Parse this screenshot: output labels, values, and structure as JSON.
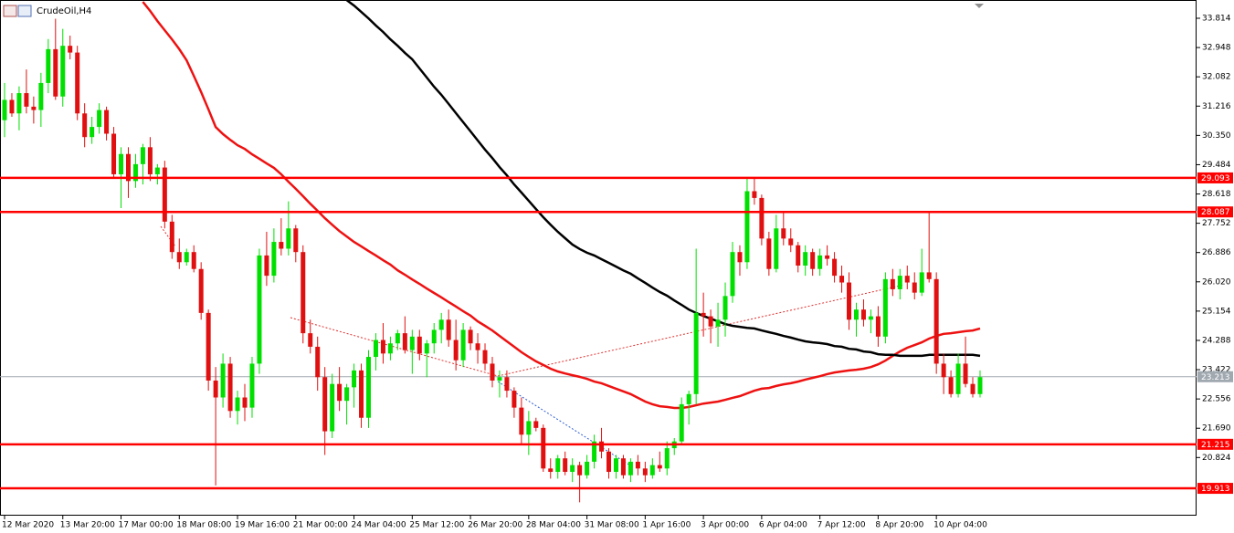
{
  "chart_data": {
    "type": "candlestick",
    "title": "CrudeOil,H4",
    "categories": [
      "12 Mar 2020",
      null,
      null,
      null,
      null,
      null,
      null,
      null,
      "13 Mar 20:00",
      null,
      null,
      null,
      null,
      null,
      null,
      null,
      "17 Mar 00:00",
      null,
      null,
      null,
      null,
      null,
      null,
      null,
      "18 Mar 08:00",
      null,
      null,
      null,
      null,
      null,
      null,
      null,
      "19 Mar 16:00",
      null,
      null,
      null,
      null,
      null,
      null,
      null,
      "21 Mar 00:00",
      null,
      null,
      null,
      null,
      null,
      null,
      null,
      "24 Mar 04:00",
      null,
      null,
      null,
      null,
      null,
      null,
      null,
      "25 Mar 12:00",
      null,
      null,
      null,
      null,
      null,
      null,
      null,
      "26 Mar 20:00",
      null,
      null,
      null,
      null,
      null,
      null,
      null,
      "28 Mar 04:00",
      null,
      null,
      null,
      null,
      null,
      null,
      null,
      "31 Mar 08:00",
      null,
      null,
      null,
      null,
      null,
      null,
      null,
      "1 Apr 16:00",
      null,
      null,
      null,
      null,
      null,
      null,
      null,
      "3 Apr 00:00",
      null,
      null,
      null,
      null,
      null,
      null,
      null,
      "6 Apr 04:00",
      null,
      null,
      null,
      null,
      null,
      null,
      null,
      "7 Apr 12:00",
      null,
      null,
      null,
      null,
      null,
      null,
      null,
      "8 Apr 20:00",
      null,
      null,
      null,
      null,
      null,
      null,
      null,
      "10 Apr 04:00",
      null,
      null,
      null,
      null,
      null,
      null
    ],
    "ohlc": [
      [
        30.8,
        31.9,
        30.3,
        31.4
      ],
      [
        31.4,
        31.6,
        30.9,
        31.0
      ],
      [
        31.0,
        31.8,
        30.5,
        31.6
      ],
      [
        31.6,
        32.3,
        31.0,
        31.2
      ],
      [
        31.2,
        31.5,
        30.7,
        31.1
      ],
      [
        31.1,
        32.2,
        30.6,
        31.9
      ],
      [
        31.9,
        33.2,
        31.6,
        32.9
      ],
      [
        32.9,
        33.8,
        31.4,
        31.5
      ],
      [
        31.5,
        33.5,
        31.2,
        33.0
      ],
      [
        33.0,
        33.3,
        32.6,
        32.8
      ],
      [
        32.8,
        33.0,
        30.8,
        31.0
      ],
      [
        31.0,
        31.3,
        30.0,
        30.3
      ],
      [
        30.3,
        30.9,
        30.1,
        30.6
      ],
      [
        30.6,
        31.3,
        30.4,
        31.1
      ],
      [
        31.1,
        31.2,
        30.2,
        30.4
      ],
      [
        30.4,
        30.6,
        29.1,
        29.2
      ],
      [
        29.2,
        30.0,
        28.2,
        29.8
      ],
      [
        29.8,
        30.0,
        28.5,
        29.0
      ],
      [
        29.0,
        29.8,
        28.8,
        29.5
      ],
      [
        29.5,
        30.1,
        28.9,
        30.0
      ],
      [
        30.0,
        30.3,
        29.0,
        29.2
      ],
      [
        29.2,
        29.5,
        28.9,
        29.4
      ],
      [
        29.4,
        29.6,
        27.6,
        27.8
      ],
      [
        27.8,
        28.0,
        26.7,
        26.9
      ],
      [
        26.9,
        27.3,
        26.4,
        26.6
      ],
      [
        26.6,
        27.0,
        26.5,
        26.9
      ],
      [
        26.9,
        27.1,
        26.3,
        26.4
      ],
      [
        26.4,
        26.6,
        24.9,
        25.1
      ],
      [
        25.1,
        25.2,
        22.8,
        23.1
      ],
      [
        23.1,
        23.5,
        20.0,
        22.6
      ],
      [
        22.6,
        23.9,
        22.3,
        23.6
      ],
      [
        23.6,
        23.8,
        22.0,
        22.2
      ],
      [
        22.2,
        22.8,
        21.8,
        22.6
      ],
      [
        22.6,
        23.0,
        21.9,
        22.3
      ],
      [
        22.3,
        23.8,
        22.0,
        23.6
      ],
      [
        23.6,
        27.0,
        23.3,
        26.8
      ],
      [
        26.8,
        27.5,
        25.9,
        26.2
      ],
      [
        26.2,
        27.6,
        26.0,
        27.2
      ],
      [
        27.2,
        27.9,
        26.8,
        27.0
      ],
      [
        27.0,
        28.4,
        26.8,
        27.6
      ],
      [
        27.6,
        27.7,
        26.6,
        26.9
      ],
      [
        26.9,
        27.1,
        24.2,
        24.5
      ],
      [
        24.5,
        24.9,
        23.9,
        24.1
      ],
      [
        24.1,
        24.4,
        22.8,
        23.2
      ],
      [
        23.2,
        23.5,
        20.9,
        21.6
      ],
      [
        21.6,
        23.3,
        21.4,
        23.0
      ],
      [
        23.0,
        23.5,
        22.2,
        22.5
      ],
      [
        22.5,
        23.0,
        21.8,
        22.9
      ],
      [
        22.9,
        23.6,
        22.3,
        23.4
      ],
      [
        23.4,
        23.6,
        21.7,
        22.0
      ],
      [
        22.0,
        24.0,
        21.7,
        23.8
      ],
      [
        23.8,
        24.5,
        23.4,
        24.3
      ],
      [
        24.3,
        24.8,
        23.6,
        23.9
      ],
      [
        23.9,
        24.4,
        23.7,
        24.2
      ],
      [
        24.2,
        24.6,
        24.0,
        24.5
      ],
      [
        24.5,
        25.0,
        23.9,
        24.0
      ],
      [
        24.0,
        24.6,
        23.3,
        24.4
      ],
      [
        24.4,
        24.6,
        23.7,
        23.9
      ],
      [
        23.9,
        24.3,
        23.2,
        24.2
      ],
      [
        24.2,
        24.8,
        23.9,
        24.6
      ],
      [
        24.6,
        25.1,
        24.2,
        24.9
      ],
      [
        24.9,
        25.2,
        24.1,
        24.3
      ],
      [
        24.3,
        24.9,
        23.4,
        23.7
      ],
      [
        23.7,
        24.8,
        23.5,
        24.6
      ],
      [
        24.6,
        24.7,
        24.0,
        24.2
      ],
      [
        24.2,
        24.5,
        23.6,
        24.0
      ],
      [
        24.0,
        24.2,
        23.4,
        23.6
      ],
      [
        23.6,
        23.8,
        22.9,
        23.1
      ],
      [
        23.1,
        23.4,
        22.6,
        23.2
      ],
      [
        23.2,
        23.4,
        22.6,
        22.8
      ],
      [
        22.8,
        22.9,
        22.0,
        22.3
      ],
      [
        22.3,
        22.6,
        21.2,
        21.5
      ],
      [
        21.5,
        22.2,
        20.9,
        21.9
      ],
      [
        21.9,
        22.0,
        21.6,
        21.7
      ],
      [
        21.7,
        21.8,
        20.4,
        20.5
      ],
      [
        20.5,
        20.8,
        20.2,
        20.4
      ],
      [
        20.4,
        20.9,
        20.2,
        20.8
      ],
      [
        20.8,
        21.0,
        20.3,
        20.4
      ],
      [
        20.4,
        20.8,
        20.1,
        20.6
      ],
      [
        20.6,
        20.7,
        19.5,
        20.3
      ],
      [
        20.3,
        20.9,
        20.2,
        20.7
      ],
      [
        20.7,
        21.5,
        20.5,
        21.3
      ],
      [
        21.3,
        21.7,
        20.8,
        21.0
      ],
      [
        21.0,
        21.1,
        20.2,
        20.4
      ],
      [
        20.4,
        20.9,
        20.2,
        20.8
      ],
      [
        20.8,
        20.9,
        20.2,
        20.3
      ],
      [
        20.3,
        20.8,
        20.1,
        20.7
      ],
      [
        20.7,
        20.9,
        20.3,
        20.5
      ],
      [
        20.5,
        20.7,
        20.1,
        20.3
      ],
      [
        20.3,
        20.8,
        20.2,
        20.6
      ],
      [
        20.6,
        21.0,
        20.4,
        20.5
      ],
      [
        20.5,
        21.3,
        20.3,
        21.1
      ],
      [
        21.1,
        21.4,
        20.9,
        21.3
      ],
      [
        21.3,
        22.6,
        21.2,
        22.4
      ],
      [
        22.4,
        22.8,
        21.8,
        22.7
      ],
      [
        22.7,
        27.0,
        22.4,
        25.1
      ],
      [
        25.1,
        25.7,
        24.4,
        25.0
      ],
      [
        25.0,
        25.2,
        24.2,
        24.7
      ],
      [
        24.7,
        25.4,
        24.1,
        24.9
      ],
      [
        24.9,
        26.0,
        24.4,
        25.6
      ],
      [
        25.6,
        27.2,
        25.4,
        26.9
      ],
      [
        26.9,
        27.1,
        26.2,
        26.6
      ],
      [
        26.6,
        29.1,
        26.4,
        28.7
      ],
      [
        28.7,
        29.1,
        28.3,
        28.5
      ],
      [
        28.5,
        28.6,
        27.1,
        27.3
      ],
      [
        27.3,
        27.5,
        26.2,
        26.4
      ],
      [
        26.4,
        28.0,
        26.3,
        27.6
      ],
      [
        27.6,
        28.1,
        27.1,
        27.3
      ],
      [
        27.3,
        27.6,
        26.9,
        27.1
      ],
      [
        27.1,
        27.2,
        26.3,
        26.5
      ],
      [
        26.5,
        27.1,
        26.2,
        26.9
      ],
      [
        26.9,
        27.0,
        26.2,
        26.4
      ],
      [
        26.4,
        27.0,
        26.2,
        26.8
      ],
      [
        26.8,
        27.1,
        26.5,
        26.7
      ],
      [
        26.7,
        26.9,
        26.0,
        26.2
      ],
      [
        26.2,
        26.5,
        25.7,
        26.0
      ],
      [
        26.0,
        26.3,
        24.6,
        24.9
      ],
      [
        24.9,
        25.4,
        24.4,
        25.2
      ],
      [
        25.2,
        25.5,
        24.7,
        24.9
      ],
      [
        24.9,
        25.2,
        24.5,
        25.0
      ],
      [
        25.0,
        25.3,
        24.1,
        24.4
      ],
      [
        24.4,
        26.3,
        24.2,
        26.1
      ],
      [
        26.1,
        26.4,
        25.6,
        25.8
      ],
      [
        25.8,
        26.4,
        25.5,
        26.2
      ],
      [
        26.2,
        26.5,
        25.8,
        26.0
      ],
      [
        26.0,
        26.3,
        25.5,
        25.7
      ],
      [
        25.7,
        27.0,
        25.6,
        26.3
      ],
      [
        26.3,
        28.1,
        26.0,
        26.1
      ],
      [
        26.1,
        26.3,
        23.3,
        23.6
      ],
      [
        23.6,
        23.9,
        22.7,
        23.2
      ],
      [
        23.2,
        23.4,
        22.6,
        22.7
      ],
      [
        22.7,
        23.9,
        22.6,
        23.6
      ],
      [
        23.6,
        24.4,
        22.9,
        23.0
      ],
      [
        23.0,
        23.2,
        22.6,
        22.7
      ],
      [
        22.7,
        23.4,
        22.6,
        23.2
      ]
    ],
    "up_color": "#00e000",
    "down_color": "#e01010",
    "series": [
      {
        "color": "#ee1111",
        "values": [
          null,
          null,
          null,
          null,
          null,
          null,
          null,
          null,
          null,
          null,
          null,
          null,
          null,
          null,
          null,
          null,
          null,
          null,
          null,
          34.3,
          34.03,
          33.73,
          33.46,
          33.19,
          32.9,
          32.57,
          32.11,
          31.63,
          31.12,
          30.6,
          30.39,
          30.22,
          30.06,
          29.95,
          29.79,
          29.66,
          29.52,
          29.39,
          29.2,
          28.98,
          28.77,
          28.55,
          28.33,
          28.12,
          27.9,
          27.71,
          27.52,
          27.36,
          27.2,
          27.07,
          26.93,
          26.8,
          26.66,
          26.53,
          26.36,
          26.23,
          26.09,
          25.96,
          25.82,
          25.69,
          25.56,
          25.42,
          25.29,
          25.15,
          25.02,
          24.85,
          24.72,
          24.58,
          24.42,
          24.26,
          24.1,
          23.94,
          23.8,
          23.67,
          23.56,
          23.45,
          23.37,
          23.31,
          23.26,
          23.21,
          23.15,
          23.07,
          23.02,
          22.94,
          22.86,
          22.78,
          22.7,
          22.59,
          22.48,
          22.4,
          22.34,
          22.32,
          22.29,
          22.29,
          22.32,
          22.37,
          22.42,
          22.45,
          22.48,
          22.53,
          22.59,
          22.64,
          22.72,
          22.8,
          22.86,
          22.88,
          22.94,
          22.99,
          23.02,
          23.07,
          23.13,
          23.18,
          23.23,
          23.29,
          23.34,
          23.37,
          23.4,
          23.42,
          23.45,
          23.5,
          23.58,
          23.69,
          23.83,
          23.96,
          24.07,
          24.15,
          24.23,
          24.34,
          24.42,
          24.48,
          24.5,
          24.53,
          24.56,
          24.58,
          24.64
        ]
      },
      {
        "color": "#000000",
        "values": [
          null,
          null,
          null,
          null,
          null,
          null,
          null,
          null,
          null,
          null,
          null,
          null,
          null,
          null,
          null,
          null,
          null,
          null,
          null,
          null,
          null,
          null,
          null,
          null,
          null,
          null,
          null,
          null,
          null,
          null,
          null,
          null,
          null,
          null,
          null,
          null,
          null,
          null,
          null,
          null,
          null,
          null,
          null,
          null,
          null,
          null,
          null,
          34.35,
          34.19,
          34.0,
          33.81,
          33.6,
          33.41,
          33.19,
          33.0,
          32.79,
          32.6,
          32.33,
          32.06,
          31.79,
          31.55,
          31.28,
          31.01,
          30.74,
          30.47,
          30.2,
          29.93,
          29.68,
          29.41,
          29.17,
          28.9,
          28.66,
          28.42,
          28.17,
          27.93,
          27.71,
          27.5,
          27.31,
          27.12,
          26.99,
          26.88,
          26.8,
          26.69,
          26.58,
          26.47,
          26.36,
          26.26,
          26.12,
          25.99,
          25.85,
          25.72,
          25.61,
          25.47,
          25.34,
          25.2,
          25.1,
          25.01,
          24.93,
          24.85,
          24.77,
          24.72,
          24.69,
          24.66,
          24.64,
          24.58,
          24.53,
          24.48,
          24.42,
          24.37,
          24.31,
          24.26,
          24.23,
          24.21,
          24.18,
          24.12,
          24.1,
          24.04,
          24.02,
          23.96,
          23.94,
          23.88,
          23.86,
          23.86,
          23.83,
          23.83,
          23.83,
          23.83,
          23.86,
          23.86,
          23.86,
          23.86,
          23.86,
          23.86,
          23.86,
          23.83
        ]
      }
    ],
    "levels": [
      {
        "value": 29.093,
        "color": "#ff0000"
      },
      {
        "value": 28.087,
        "color": "#ff0000"
      },
      {
        "value": 21.215,
        "color": "#ff0000"
      },
      {
        "value": 19.913,
        "color": "#ff0000"
      }
    ],
    "current_price": {
      "value": 23.213,
      "color": "#a0a8b0"
    },
    "ylim": [
      19.105,
      34.354
    ],
    "yticks": [
      33.814,
      32.948,
      32.082,
      31.216,
      {
        "value": 30.35,
        "label": "30.350"
      },
      29.484,
      28.618,
      27.752,
      26.886,
      {
        "value": 26.02,
        "label": "26.020"
      },
      25.154,
      24.288,
      23.422,
      22.556,
      {
        "value": 21.69,
        "label": "21.690"
      },
      20.824
    ]
  }
}
